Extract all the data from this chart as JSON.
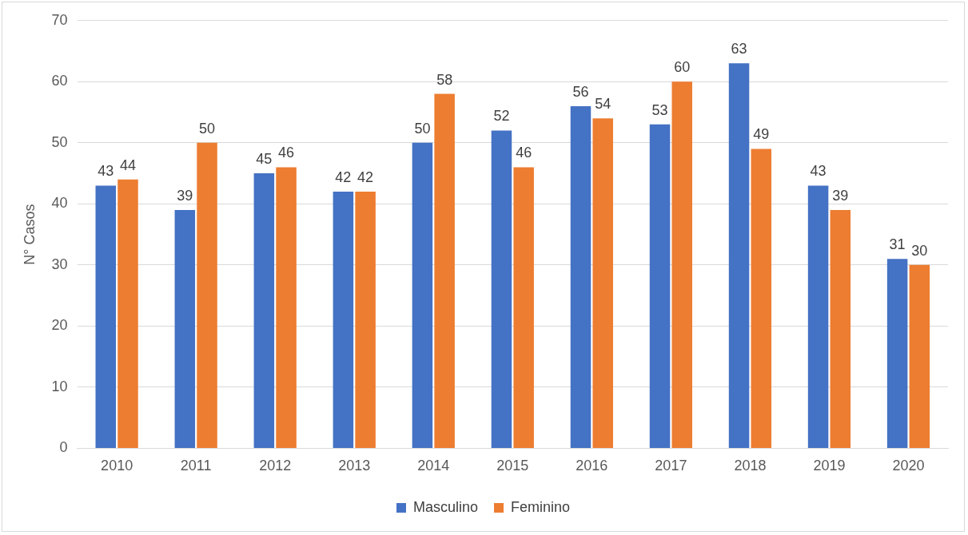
{
  "chart_data": {
    "type": "bar",
    "ylabel": "N° Casos",
    "categories": [
      "2010",
      "2011",
      "2012",
      "2013",
      "2014",
      "2015",
      "2016",
      "2017",
      "2018",
      "2019",
      "2020"
    ],
    "series": [
      {
        "name": "Masculino",
        "color": "#4472c4",
        "values": [
          43,
          39,
          45,
          42,
          50,
          52,
          56,
          53,
          63,
          43,
          31
        ]
      },
      {
        "name": "Feminino",
        "color": "#ed7d31",
        "values": [
          44,
          50,
          46,
          42,
          58,
          46,
          54,
          60,
          49,
          39,
          30
        ]
      }
    ],
    "ylim": [
      0,
      70
    ],
    "yticks": [
      0,
      10,
      20,
      30,
      40,
      50,
      60,
      70
    ],
    "grid": "y",
    "legend": "bottom",
    "data_labels": true
  }
}
